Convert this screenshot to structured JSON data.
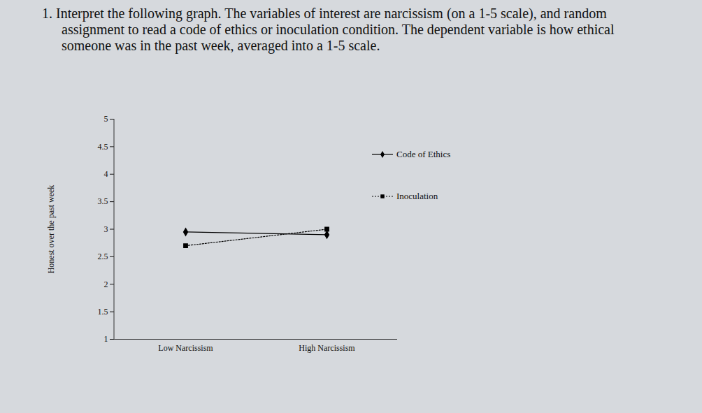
{
  "chart_data": {
    "type": "line",
    "title": "1. Interpret the following graph. The variables of interest are narcissism (on a 1-5 scale), and random assignment to read a code of ethics or inoculation condition. The dependent variable is how ethical someone was in the past week, averaged into a 1-5 scale.",
    "y_label": "Honest over the past week",
    "categories": [
      "Low Narcissism",
      "High Narcissism"
    ],
    "series": [
      {
        "name": "Code of Ethics",
        "color": "#000000",
        "marker": "diamond",
        "line_style": "solid",
        "values": [
          2.95,
          2.9
        ]
      },
      {
        "name": "Inoculation",
        "color": "#000000",
        "marker": "square",
        "line_style": "dotted",
        "values": [
          2.7,
          3.0
        ]
      }
    ],
    "ylim": [
      1,
      5
    ],
    "yticks": [
      1,
      1.5,
      2,
      2.5,
      3,
      3.5,
      4,
      4.5,
      5
    ],
    "grid": false,
    "legend": "right"
  }
}
